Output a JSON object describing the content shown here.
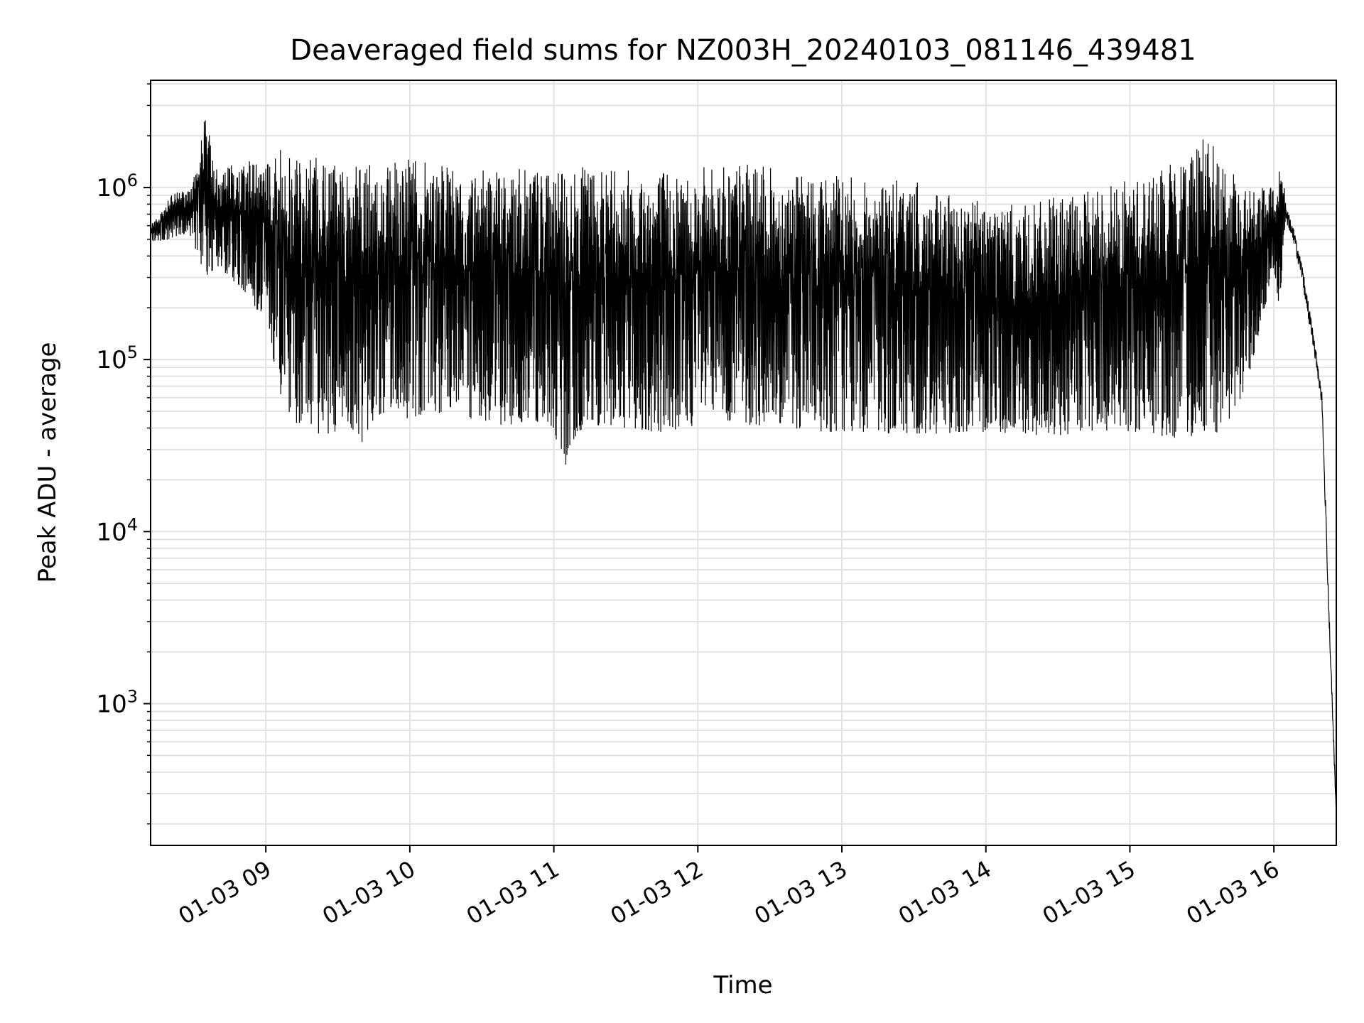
{
  "chart_data": {
    "type": "line",
    "title": "Deaveraged field sums for NZ003H_20240103_081146_439481",
    "xlabel": "Time",
    "ylabel": "Peak ADU - average",
    "yscale": "log",
    "xlim": [
      "2024-01-03 08:12",
      "2024-01-03 16:26"
    ],
    "ylim": [
      150,
      4200000
    ],
    "x_ticks": [
      {
        "value": "2024-01-03 09:00",
        "label": "01-03 09"
      },
      {
        "value": "2024-01-03 10:00",
        "label": "01-03 10"
      },
      {
        "value": "2024-01-03 11:00",
        "label": "01-03 11"
      },
      {
        "value": "2024-01-03 12:00",
        "label": "01-03 12"
      },
      {
        "value": "2024-01-03 13:00",
        "label": "01-03 13"
      },
      {
        "value": "2024-01-03 14:00",
        "label": "01-03 14"
      },
      {
        "value": "2024-01-03 15:00",
        "label": "01-03 15"
      },
      {
        "value": "2024-01-03 16:00",
        "label": "01-03 16"
      }
    ],
    "y_ticks": [
      {
        "value": 1000,
        "base": "10",
        "exp": "3"
      },
      {
        "value": 10000,
        "base": "10",
        "exp": "4"
      },
      {
        "value": 100000,
        "base": "10",
        "exp": "5"
      },
      {
        "value": 1000000,
        "base": "10",
        "exp": "6"
      }
    ],
    "grid": true,
    "line_color": "#000000",
    "series": [
      {
        "x": [
          "2024-01-03 08:12",
          "2024-01-03 08:20",
          "2024-01-03 08:28",
          "2024-01-03 08:35",
          "2024-01-03 08:40",
          "2024-01-03 08:45",
          "2024-01-03 08:50",
          "2024-01-03 08:55",
          "2024-01-03 09:00",
          "2024-01-03 09:05",
          "2024-01-03 09:10",
          "2024-01-03 09:15",
          "2024-01-03 09:20",
          "2024-01-03 09:25",
          "2024-01-03 09:30",
          "2024-01-03 09:35",
          "2024-01-03 09:40",
          "2024-01-03 09:45",
          "2024-01-03 09:50",
          "2024-01-03 09:55",
          "2024-01-03 10:00",
          "2024-01-03 10:10",
          "2024-01-03 10:20",
          "2024-01-03 10:30",
          "2024-01-03 10:40",
          "2024-01-03 10:50",
          "2024-01-03 11:00",
          "2024-01-03 11:03",
          "2024-01-03 11:10",
          "2024-01-03 11:20",
          "2024-01-03 11:30",
          "2024-01-03 11:40",
          "2024-01-03 11:50",
          "2024-01-03 12:00",
          "2024-01-03 12:10",
          "2024-01-03 12:20",
          "2024-01-03 12:30",
          "2024-01-03 12:40",
          "2024-01-03 12:50",
          "2024-01-03 13:00",
          "2024-01-03 13:10",
          "2024-01-03 13:20",
          "2024-01-03 13:30",
          "2024-01-03 13:40",
          "2024-01-03 13:50",
          "2024-01-03 14:00",
          "2024-01-03 14:10",
          "2024-01-03 14:20",
          "2024-01-03 14:30",
          "2024-01-03 14:40",
          "2024-01-03 14:50",
          "2024-01-03 15:00",
          "2024-01-03 15:10",
          "2024-01-03 15:20",
          "2024-01-03 15:30",
          "2024-01-03 15:40",
          "2024-01-03 15:50",
          "2024-01-03 16:00",
          "2024-01-03 16:02",
          "2024-01-03 16:05",
          "2024-01-03 16:08",
          "2024-01-03 16:12",
          "2024-01-03 16:16",
          "2024-01-03 16:20",
          "2024-01-03 16:23",
          "2024-01-03 16:26"
        ],
        "max": [
          600000,
          900000,
          1000000,
          2700000,
          1200000,
          1400000,
          1300000,
          1500000,
          1500000,
          1700000,
          1500000,
          1400000,
          1500000,
          1600000,
          1400000,
          1300000,
          1500000,
          1400000,
          1400000,
          1400000,
          1500000,
          1400000,
          1300000,
          1400000,
          1300000,
          1300000,
          1300000,
          1200000,
          1300000,
          1400000,
          1400000,
          1300000,
          1300000,
          1300000,
          1400000,
          1400000,
          1300000,
          1200000,
          1200000,
          1200000,
          1100000,
          1100000,
          1100000,
          900000,
          900000,
          900000,
          800000,
          800000,
          900000,
          900000,
          1100000,
          1100000,
          1300000,
          1400000,
          2400000,
          1300000,
          1000000,
          1000000,
          1500000,
          1000000,
          750000,
          450000,
          200000,
          90000,
          5000,
          250
        ],
        "min": [
          480000,
          500000,
          550000,
          300000,
          350000,
          300000,
          250000,
          200000,
          180000,
          70000,
          45000,
          40000,
          38000,
          35000,
          38000,
          40000,
          33000,
          45000,
          50000,
          48000,
          45000,
          50000,
          45000,
          45000,
          40000,
          45000,
          40000,
          20000,
          38000,
          42000,
          40000,
          38000,
          38000,
          42000,
          45000,
          42000,
          40000,
          40000,
          38000,
          38000,
          38000,
          37000,
          37000,
          37000,
          38000,
          38000,
          37000,
          36000,
          36000,
          37000,
          38000,
          38000,
          36000,
          35000,
          36000,
          38000,
          80000,
          350000,
          200000,
          500000,
          400000,
          200000,
          100000,
          40000,
          2000,
          200
        ]
      }
    ]
  }
}
